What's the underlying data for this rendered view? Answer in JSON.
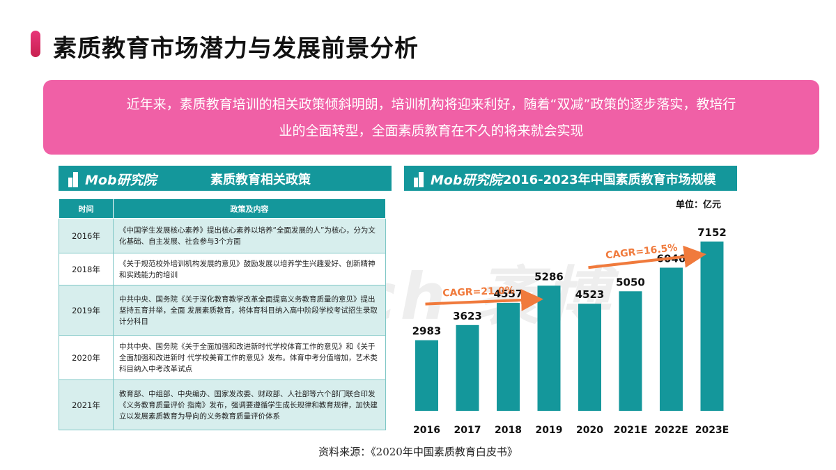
{
  "page": {
    "title": "素质教育市场潜力与发展前景分析",
    "banner_line1": "近年来，素质教育培训的相关政策倾斜明朗，培训机构将迎来利好，随着“双减”政策的逐步落实，教培行",
    "banner_line2": "业的全面转型，全面素质教育在不久的将来就会实现",
    "source": "资料来源：《2020年中国素质教育白皮书》",
    "watermark": "MobTech 袤博"
  },
  "left_panel": {
    "logo": "Mob研究院",
    "title": "素质教育相关政策",
    "table": {
      "headers": [
        "时间",
        "政策及内容"
      ],
      "rows": [
        {
          "year": "2016年",
          "content": "《中国学生发展核心素养》提出核心素养以培养“全面发展的人”为核心，分为文化基础、自主发展、社会参与3个方面"
        },
        {
          "year": "2018年",
          "content": "《关于规范校外培训机构发展的意见》鼓励发展以培养学生兴趣爱好、创新精神和实践能力的培训"
        },
        {
          "year": "2019年",
          "content": "中共中央、国务院《关于深化教育教学改革全面提高义务教育质量的意见》提出坚持五育并举，全面 发展素质教育，将体育科目纳入高中阶段学校考试招生录取计分科目"
        },
        {
          "year": "2020年",
          "content": "中共中央、国务院《关于全面加强和改进新时代学校体育工作的意见》和《关于全面加强和改进新时 代学校美育工作的意见》发布。体育中考分值增加，艺术类科目纳入中考改革试点"
        },
        {
          "year": "2021年",
          "content": "教育部、中组部、中央编办、国家发改委、财政部、人社部等六个部门联合印发《义务教育质量评价 指南》发布，强调要遵循学生成长规律和教育规律，加快建立以发展素质教育为导向的义务教育质量评价体系"
        }
      ]
    }
  },
  "right_panel": {
    "logo": "Mob研究院",
    "title": "2016-2023年中国素质教育市场规模",
    "unit": "单位：亿元"
  },
  "colors": {
    "teal": "#14979b",
    "pink_banner": "#f060a6",
    "arrow_orange": "#f07a3c"
  },
  "chart_data": {
    "type": "bar",
    "title": "2016-2023年中国素质教育市场规模",
    "unit": "单位：亿元",
    "categories": [
      "2016",
      "2017",
      "2018",
      "2019",
      "2020",
      "2021E",
      "2022E",
      "2023E"
    ],
    "values": [
      2983,
      3623,
      4557,
      5286,
      4523,
      5050,
      6046,
      7152
    ],
    "ylim": [
      0,
      8000
    ],
    "grid": false,
    "color": "#14979b",
    "annotations": [
      {
        "text": "CAGR=21.0%",
        "from": "2016",
        "to": "2019"
      },
      {
        "text": "CAGR=16.5%",
        "from": "2020",
        "to": "2023E"
      }
    ]
  }
}
